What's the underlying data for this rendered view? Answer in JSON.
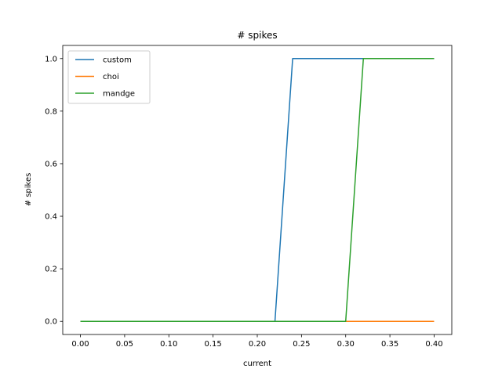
{
  "chart_data": {
    "type": "line",
    "title": "# spikes",
    "xlabel": "current",
    "ylabel": "# spikes",
    "xlim": [
      -0.02,
      0.42
    ],
    "ylim": [
      -0.05,
      1.05
    ],
    "xticks": [
      0.0,
      0.05,
      0.1,
      0.15,
      0.2,
      0.25,
      0.3,
      0.35,
      0.4
    ],
    "xtick_labels": [
      "0.00",
      "0.05",
      "0.10",
      "0.15",
      "0.20",
      "0.25",
      "0.30",
      "0.35",
      "0.40"
    ],
    "yticks": [
      0.0,
      0.2,
      0.4,
      0.6,
      0.8,
      1.0
    ],
    "ytick_labels": [
      "0.0",
      "0.2",
      "0.4",
      "0.6",
      "0.8",
      "1.0"
    ],
    "grid": false,
    "legend_position": "top-left",
    "x": [
      0.0,
      0.02,
      0.04,
      0.06,
      0.08,
      0.1,
      0.12,
      0.14,
      0.16,
      0.18,
      0.2,
      0.22,
      0.24,
      0.26,
      0.28,
      0.3,
      0.32,
      0.34,
      0.36,
      0.38,
      0.4
    ],
    "series": [
      {
        "name": "custom",
        "color": "#1f77b4",
        "values": [
          0,
          0,
          0,
          0,
          0,
          0,
          0,
          0,
          0,
          0,
          0,
          0,
          1,
          1,
          1,
          1,
          1,
          1,
          1,
          1,
          1
        ]
      },
      {
        "name": "choi",
        "color": "#ff7f0e",
        "values": [
          0,
          0,
          0,
          0,
          0,
          0,
          0,
          0,
          0,
          0,
          0,
          0,
          0,
          0,
          0,
          0,
          0,
          0,
          0,
          0,
          0
        ]
      },
      {
        "name": "mandge",
        "color": "#2ca02c",
        "values": [
          0,
          0,
          0,
          0,
          0,
          0,
          0,
          0,
          0,
          0,
          0,
          0,
          0,
          0,
          0,
          0,
          1,
          1,
          1,
          1,
          1
        ]
      }
    ]
  }
}
